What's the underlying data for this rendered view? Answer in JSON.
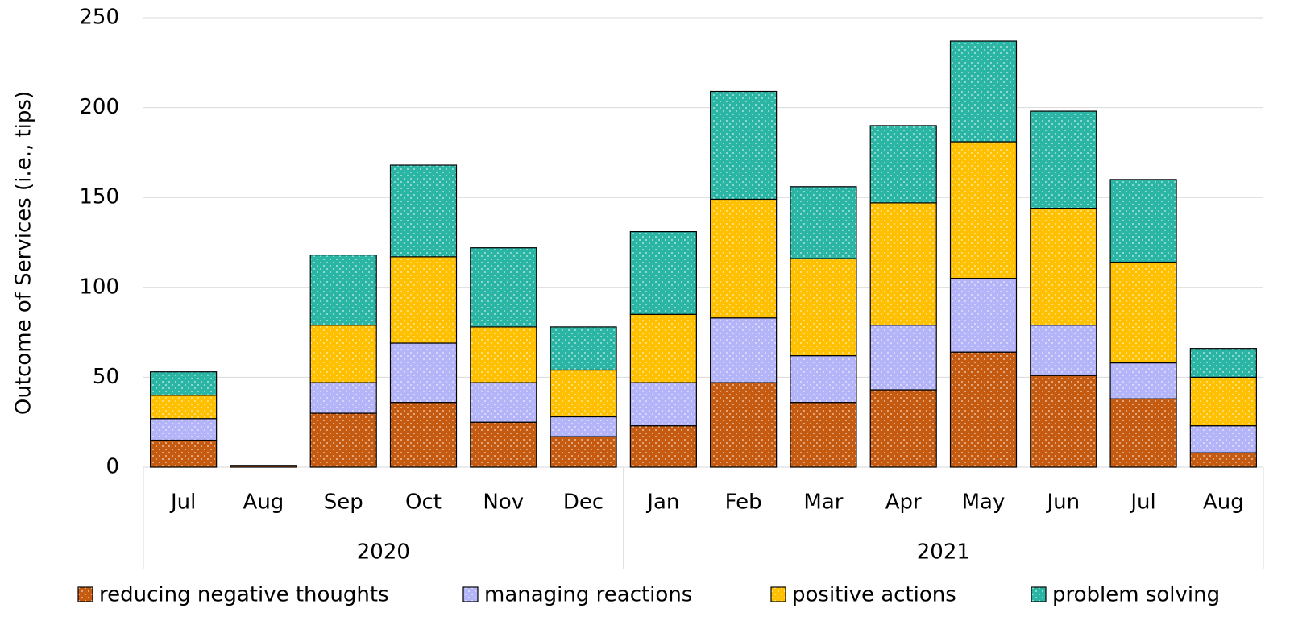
{
  "chart_data": {
    "type": "stacked_bar",
    "y_label": "Outcome of Services (i.e., tips)",
    "category_groups": [
      {
        "name": "2020",
        "categories": [
          "Jul",
          "Aug",
          "Sep",
          "Oct",
          "Nov",
          "Dec"
        ]
      },
      {
        "name": "2021",
        "categories": [
          "Jan",
          "Feb",
          "Mar",
          "Apr",
          "May",
          "Jun",
          "Jul",
          "Aug"
        ]
      }
    ],
    "series": [
      {
        "name": "reducing negative thoughts",
        "color": "#c55a11",
        "values": [
          15,
          1,
          30,
          36,
          25,
          17,
          23,
          47,
          36,
          43,
          64,
          51,
          38,
          8
        ]
      },
      {
        "name": "managing reactions",
        "color": "#b4b4f8",
        "values": [
          12,
          0,
          17,
          33,
          22,
          11,
          24,
          36,
          26,
          36,
          41,
          28,
          20,
          15
        ]
      },
      {
        "name": "positive actions",
        "color": "#ffc000",
        "values": [
          13,
          0,
          32,
          48,
          31,
          26,
          38,
          66,
          54,
          68,
          76,
          65,
          56,
          27
        ]
      },
      {
        "name": "problem solving",
        "color": "#2ab5a5",
        "values": [
          13,
          0,
          39,
          51,
          44,
          24,
          46,
          60,
          40,
          43,
          56,
          54,
          46,
          16
        ]
      }
    ],
    "ylim": [
      0,
      250
    ],
    "yticks": [
      0,
      50,
      100,
      150,
      200,
      250
    ],
    "grid": true,
    "legend": "bottom"
  }
}
